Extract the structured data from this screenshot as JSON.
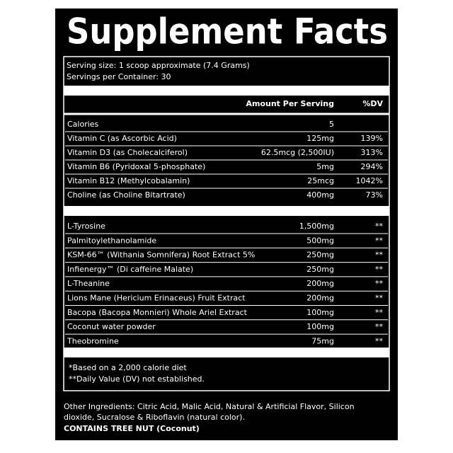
{
  "header": {
    "title": "Supplement Facts"
  },
  "serving": {
    "size": "Serving size: 1 scoop approximate (7.4 Grams)",
    "servings": "Servings per Container: 30"
  },
  "table": {
    "header": [
      "Amount Per Serving",
      "%DV"
    ],
    "nutrients": [
      [
        "Calories",
        "5",
        ""
      ],
      [
        "Vitamin C (as Ascorbic Acid)",
        "125mg",
        "139%"
      ],
      [
        "Vitamin D3 (as Cholecalciferol)",
        "62.5mcg (2,500IU)",
        "313%"
      ],
      [
        "Vitamin B6 (Pyridoxal 5-phosphate)",
        "5mg",
        "294%"
      ],
      [
        "Vitamin B12 (Methylcobalamin)",
        "25mcg",
        "1042%"
      ],
      [
        "Choline (as Choline Bitartrate)",
        "400mg",
        "73%"
      ]
    ],
    "ingredients": [
      [
        "L-Tyrosine",
        "1,500mg",
        "**"
      ],
      [
        "Palmitoylethanolamide",
        "500mg",
        "**"
      ],
      [
        "KSM-66™ (Withania Somnifera) Root Extract 5%",
        "250mg",
        "**"
      ],
      [
        "Infienergy™ (Di caffeine Malate)",
        "250mg",
        "**"
      ],
      [
        "L-Theanine",
        "200mg",
        "**"
      ],
      [
        "Lions Mane (Hericium Erinaceus) Fruit Extract",
        "200mg",
        "**"
      ],
      [
        "Bacopa (Bacopa Monnieri) Whole Ariel Extract",
        "100mg",
        "**"
      ],
      [
        "Coconut water powder",
        "100mg",
        "**"
      ],
      [
        "Theobromine",
        "75mg",
        "**"
      ]
    ]
  },
  "footnotes": [
    "*Based on a 2,000 calorie diet",
    "**Daily Value (DV) not established."
  ],
  "other_ingredients": [
    "Other Ingredients: Citric Acid, Malic Acid, Natural & Artificial Flavor, Silicon",
    "dioxide, Sucralose & Riboflavin (natural color)."
  ],
  "allergen": "CONTAINS TREE NUT (Coconut)"
}
